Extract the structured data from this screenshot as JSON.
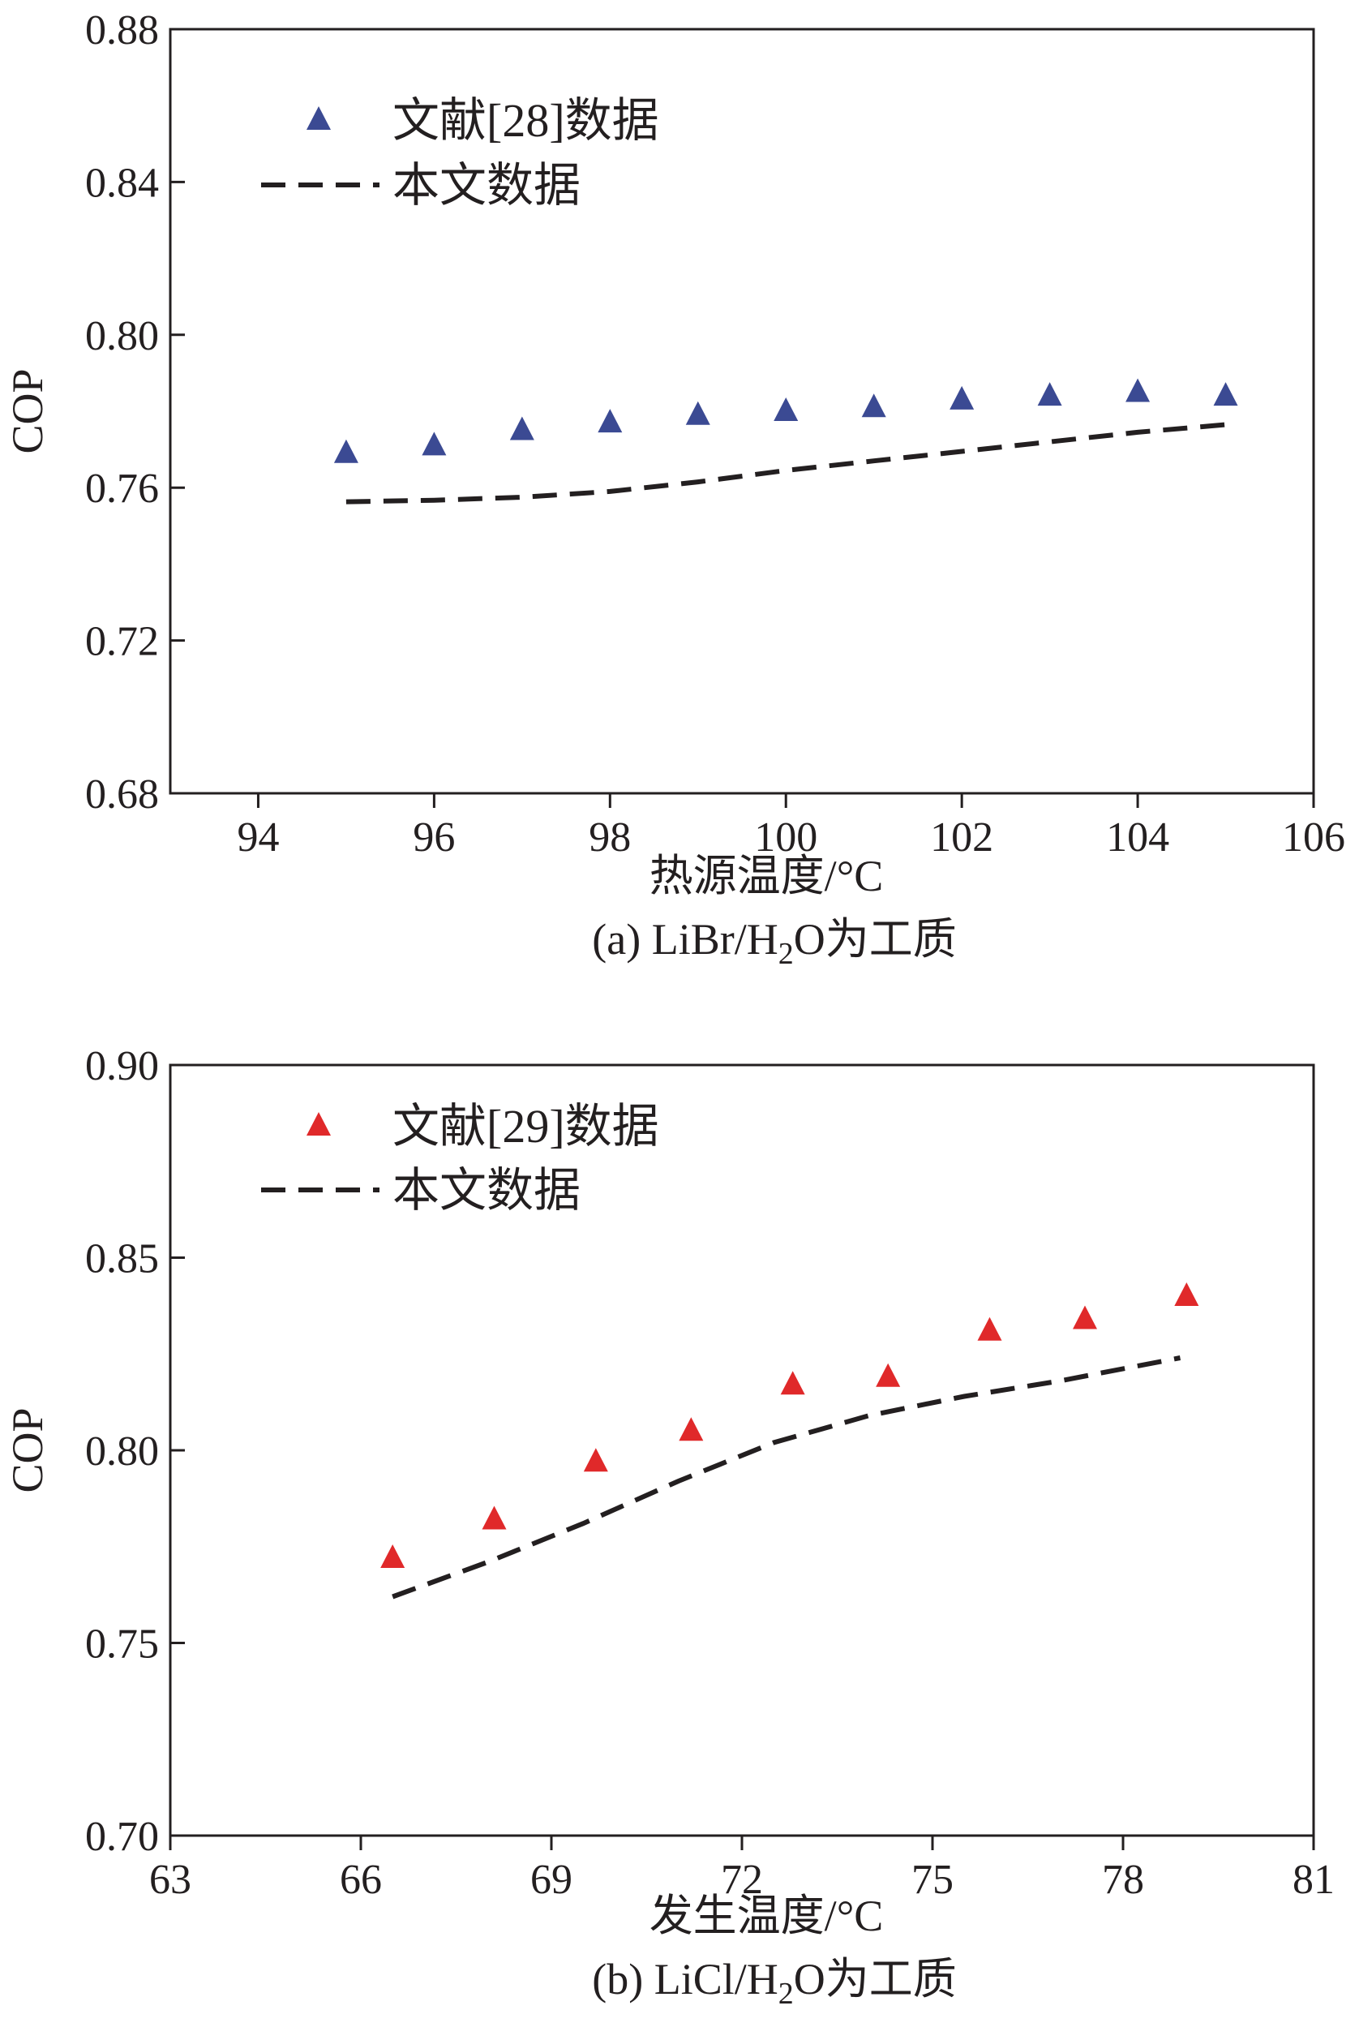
{
  "chart_data": [
    {
      "type": "scatter+line",
      "panel_caption": {
        "prefix": "(a) LiBr/H",
        "subscript": "2",
        "suffix": "O为工质"
      },
      "xlabel": "热源温度/°C",
      "ylabel": "COP",
      "xlim": [
        93,
        106
      ],
      "ylim": [
        0.68,
        0.88
      ],
      "xticks": [
        94,
        96,
        98,
        100,
        102,
        104,
        106
      ],
      "yticks": [
        "0.68",
        "0.72",
        "0.76",
        "0.80",
        "0.84",
        "0.88"
      ],
      "series": [
        {
          "name": "文献[28]数据",
          "kind": "scatter",
          "marker": "triangle",
          "color": "#3b4a93",
          "x": [
            95,
            96,
            97,
            98,
            99,
            100,
            101,
            102,
            103,
            104,
            105
          ],
          "y": [
            0.769,
            0.771,
            0.775,
            0.777,
            0.779,
            0.78,
            0.781,
            0.783,
            0.784,
            0.785,
            0.784
          ]
        },
        {
          "name": "本文数据",
          "kind": "line",
          "style": "dashed",
          "color": "#231f20",
          "x": [
            95,
            96,
            97,
            98,
            99,
            100,
            101,
            102,
            103,
            104,
            105
          ],
          "y": [
            0.7563,
            0.7567,
            0.7575,
            0.759,
            0.7615,
            0.7645,
            0.767,
            0.7695,
            0.772,
            0.7745,
            0.7765
          ]
        }
      ]
    },
    {
      "type": "scatter+line",
      "panel_caption": {
        "prefix": "(b) LiCl/H",
        "subscript": "2",
        "suffix": "O为工质"
      },
      "xlabel": "发生温度/°C",
      "ylabel": "COP",
      "xlim": [
        63,
        81
      ],
      "ylim": [
        0.7,
        0.9
      ],
      "xticks": [
        63,
        66,
        69,
        72,
        75,
        78,
        81
      ],
      "yticks": [
        "0.70",
        "0.75",
        "0.80",
        "0.85",
        "0.90"
      ],
      "series": [
        {
          "name": "文献[29]数据",
          "kind": "scatter",
          "marker": "triangle",
          "color": "#e0292a",
          "x": [
            66.5,
            68.1,
            69.7,
            71.2,
            72.8,
            74.3,
            75.9,
            77.4,
            79.0
          ],
          "y": [
            0.772,
            0.782,
            0.797,
            0.805,
            0.817,
            0.819,
            0.831,
            0.834,
            0.84
          ]
        },
        {
          "name": "本文数据",
          "kind": "line",
          "style": "dashed",
          "color": "#231f20",
          "x": [
            66.5,
            68.0,
            69.5,
            71.0,
            72.5,
            74.0,
            75.5,
            77.0,
            78.9
          ],
          "y": [
            0.762,
            0.771,
            0.781,
            0.792,
            0.802,
            0.809,
            0.814,
            0.818,
            0.824
          ]
        }
      ]
    }
  ]
}
